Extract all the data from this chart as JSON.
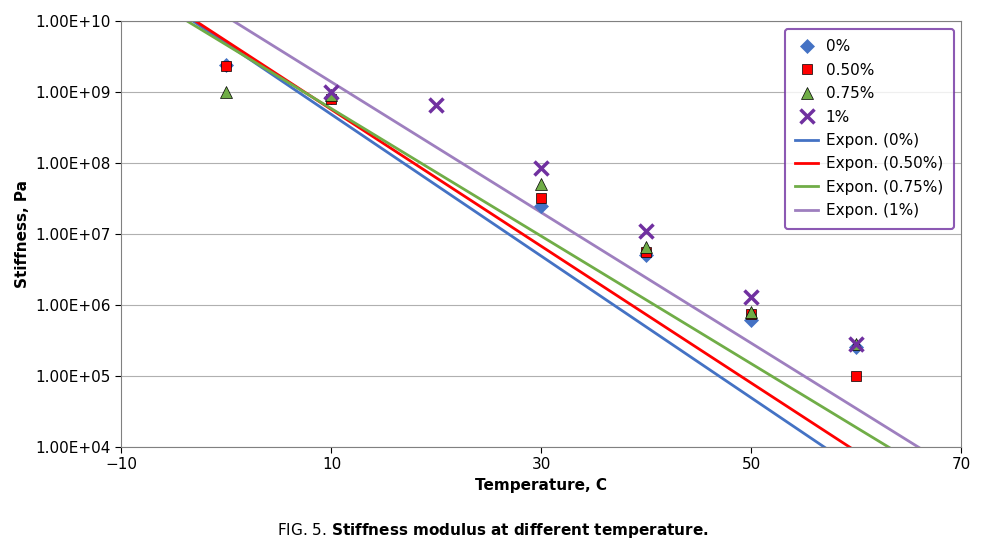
{
  "title": "FIG. 5. Stiffness modulus at different temperature.",
  "xlabel": "Temperature, C",
  "ylabel": "Stiffness, Pa",
  "xlim": [
    -10,
    70
  ],
  "xticks": [
    -10,
    10,
    30,
    50,
    70
  ],
  "ytick_values": [
    10000.0,
    100000.0,
    1000000.0,
    10000000.0,
    100000000.0,
    1000000000.0,
    10000000000.0
  ],
  "ytick_labels": [
    "1.00E+04",
    "1.00E+05",
    "1.00E+06",
    "1.00E+07",
    "1.00E+08",
    "1.00E+09",
    "1.00E+10"
  ],
  "series": [
    {
      "label": "0%",
      "x": [
        0,
        10,
        20,
        30,
        40,
        50,
        60
      ],
      "y": [
        2400000000.0,
        850000000.0,
        null,
        25000000.0,
        5000000.0,
        600000.0,
        250000.0
      ],
      "marker": "D",
      "color": "#4472C4",
      "markersize": 7
    },
    {
      "label": "0.50%",
      "x": [
        0,
        10,
        20,
        30,
        40,
        50,
        60
      ],
      "y": [
        2300000000.0,
        800000000.0,
        null,
        32000000.0,
        5500000.0,
        750000.0,
        100000.0
      ],
      "marker": "s",
      "color": "#FF0000",
      "markersize": 7
    },
    {
      "label": "0.75%",
      "x": [
        0,
        10,
        20,
        30,
        40,
        50,
        60
      ],
      "y": [
        1000000000.0,
        900000000.0,
        null,
        50000000.0,
        6500000.0,
        800000.0,
        280000.0
      ],
      "marker": "^",
      "color": "#70AD47",
      "markersize": 8
    },
    {
      "label": "1%",
      "x": [
        0,
        10,
        20,
        30,
        40,
        50,
        60
      ],
      "y": [
        null,
        1000000000.0,
        650000000.0,
        85000000.0,
        11000000.0,
        1300000.0,
        280000.0
      ],
      "marker": "x",
      "color": "#7030A0",
      "markersize": 10,
      "markeredgewidth": 2.5
    }
  ],
  "fit_x_start": -10,
  "fit_x_end": 70,
  "fits": [
    {
      "label": "Expon. (0%)",
      "color": "#4472C4",
      "a": 4800000000.0,
      "b": -0.2303
    },
    {
      "label": "Expon. (0.50%)",
      "color": "#FF0000",
      "a": 5000000000.0,
      "b": -0.2236
    },
    {
      "label": "Expon. (0.75%)",
      "color": "#70AD47",
      "a": 4500000000.0,
      "b": -0.207
    },
    {
      "label": "Expon. (1%)",
      "color": "#9E7FBF",
      "a": 12000000000.0,
      "b": -0.215
    }
  ],
  "background_color": "#FFFFFF",
  "grid_color": "#B0B0B0",
  "legend_border_color": "#7030A0",
  "font_size": 11,
  "axis_font_size": 11,
  "title_font_size": 11
}
